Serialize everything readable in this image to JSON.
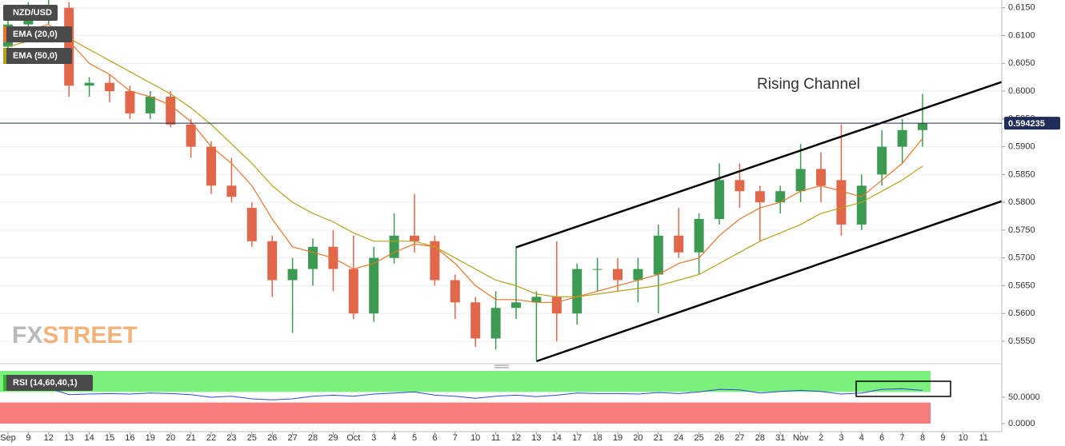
{
  "chart_data": {
    "type": "candlestick",
    "title": "NZD/USD",
    "annotation": "Rising Channel",
    "watermark": {
      "first": "FX",
      "second": "STREET"
    },
    "categories": [
      "Sep",
      "9",
      "12",
      "13",
      "14",
      "15",
      "16",
      "19",
      "20",
      "21",
      "22",
      "23",
      "25",
      "26",
      "27",
      "28",
      "29",
      "Oct",
      "3",
      "4",
      "5",
      "6",
      "7",
      "10",
      "11",
      "12",
      "13",
      "14",
      "17",
      "18",
      "19",
      "20",
      "21",
      "24",
      "25",
      "26",
      "27",
      "28",
      "31",
      "Nov",
      "2",
      "3",
      "4",
      "6",
      "7",
      "8",
      "9",
      "10",
      "11"
    ],
    "open": [
      0.608,
      0.612,
      0.614,
      0.615,
      0.601,
      0.6015,
      0.6,
      0.596,
      0.599,
      0.594,
      0.59,
      0.583,
      0.579,
      0.573,
      0.566,
      0.568,
      0.572,
      0.568,
      0.56,
      0.57,
      0.574,
      0.573,
      0.566,
      0.562,
      0.5555,
      0.561,
      0.562,
      0.563,
      0.56,
      0.568,
      0.568,
      0.566,
      0.567,
      0.574,
      0.571,
      0.577,
      0.584,
      0.582,
      0.58,
      0.582,
      0.586,
      0.584,
      0.576,
      0.585,
      0.59,
      0.593,
      null,
      null,
      null
    ],
    "high": [
      0.613,
      0.616,
      0.6165,
      0.616,
      0.6025,
      0.603,
      0.601,
      0.6,
      0.6,
      0.595,
      0.591,
      0.588,
      0.58,
      0.574,
      0.57,
      0.5735,
      0.575,
      0.574,
      0.572,
      0.578,
      0.5815,
      0.574,
      0.567,
      0.563,
      0.564,
      0.572,
      0.564,
      0.573,
      0.569,
      0.57,
      0.57,
      0.57,
      0.576,
      0.579,
      0.578,
      0.587,
      0.587,
      0.583,
      0.583,
      0.5905,
      0.589,
      0.594,
      0.585,
      0.593,
      0.595,
      0.5995,
      null,
      null,
      null
    ],
    "low": [
      0.606,
      0.61,
      0.612,
      0.599,
      0.599,
      0.598,
      0.595,
      0.595,
      0.5935,
      0.588,
      0.5815,
      0.58,
      0.572,
      0.563,
      0.5565,
      0.565,
      0.564,
      0.559,
      0.5585,
      0.569,
      0.571,
      0.565,
      0.559,
      0.554,
      0.5535,
      0.559,
      0.5515,
      0.555,
      0.558,
      0.564,
      0.564,
      0.562,
      0.56,
      0.57,
      0.567,
      0.576,
      0.579,
      0.573,
      0.578,
      0.58,
      0.58,
      0.574,
      0.575,
      0.583,
      0.587,
      0.59,
      null,
      null,
      null
    ],
    "close": [
      0.612,
      0.614,
      0.615,
      0.601,
      0.6015,
      0.6,
      0.596,
      0.599,
      0.594,
      0.59,
      0.583,
      0.581,
      0.573,
      0.566,
      0.568,
      0.572,
      0.568,
      0.56,
      0.57,
      0.574,
      0.573,
      0.566,
      0.562,
      0.5555,
      0.561,
      0.562,
      0.563,
      0.56,
      0.568,
      0.568,
      0.566,
      0.568,
      0.574,
      0.571,
      0.577,
      0.584,
      0.582,
      0.58,
      0.582,
      0.586,
      0.583,
      0.576,
      0.583,
      0.59,
      0.593,
      0.5942,
      null,
      null,
      null
    ],
    "up_color": "#3d9a53",
    "down_color": "#e0674a",
    "series": [
      {
        "name": "EMA (20,0)",
        "color": "#e8742c",
        "values": [
          0.61,
          0.611,
          0.612,
          0.609,
          0.605,
          0.603,
          0.6,
          0.599,
          0.5975,
          0.5945,
          0.59,
          0.587,
          0.583,
          0.577,
          0.572,
          0.571,
          0.57,
          0.568,
          0.569,
          0.571,
          0.5725,
          0.572,
          0.569,
          0.565,
          0.5625,
          0.5625,
          0.562,
          0.562,
          0.563,
          0.564,
          0.565,
          0.566,
          0.567,
          0.569,
          0.57,
          0.574,
          0.577,
          0.579,
          0.58,
          0.582,
          0.583,
          0.582,
          0.581,
          0.584,
          0.587,
          0.5915,
          null,
          null,
          null
        ]
      },
      {
        "name": "EMA (50,0)",
        "color": "#b5a11a",
        "values": [
          0.608,
          0.609,
          0.61,
          0.6095,
          0.6075,
          0.6055,
          0.6035,
          0.6015,
          0.5995,
          0.597,
          0.594,
          0.5905,
          0.587,
          0.583,
          0.58,
          0.578,
          0.5765,
          0.5745,
          0.573,
          0.573,
          0.573,
          0.572,
          0.57,
          0.568,
          0.566,
          0.565,
          0.5635,
          0.563,
          0.563,
          0.5635,
          0.564,
          0.5645,
          0.565,
          0.566,
          0.567,
          0.569,
          0.571,
          0.573,
          0.5745,
          0.576,
          0.578,
          0.579,
          0.58,
          0.582,
          0.584,
          0.5865,
          null,
          null,
          null
        ]
      }
    ],
    "last_price": 0.594235,
    "ylim": [
      0.5514,
      0.6164
    ],
    "yticks": [
      {
        "value": 0.615,
        "label": "0.6150"
      },
      {
        "value": 0.61,
        "label": "0.6100"
      },
      {
        "value": 0.605,
        "label": "0.6050"
      },
      {
        "value": 0.6,
        "label": "0.6000"
      },
      {
        "value": 0.595,
        "label": "0.5950"
      },
      {
        "value": 0.59,
        "label": "0.5900"
      },
      {
        "value": 0.585,
        "label": "0.5850"
      },
      {
        "value": 0.58,
        "label": "0.5800"
      },
      {
        "value": 0.575,
        "label": "0.5750"
      },
      {
        "value": 0.57,
        "label": "0.5700"
      },
      {
        "value": 0.565,
        "label": "0.5650"
      },
      {
        "value": 0.56,
        "label": "0.5600"
      },
      {
        "value": 0.555,
        "label": "0.5550"
      }
    ],
    "grid": true,
    "trendlines": [
      {
        "x": [
          25,
          45
        ],
        "y": [
          0.5719,
          0.5968
        ]
      },
      {
        "x": [
          26,
          45
        ],
        "y": [
          0.5514,
          0.5753
        ]
      }
    ],
    "rsi": {
      "name": "RSI (14,60,40,1)",
      "color": "#2f45d8",
      "upper": 60,
      "lower": 40,
      "upper_color": "#7cf07c",
      "lower_color": "#f57c7c",
      "values": [
        64,
        66,
        67,
        55,
        56,
        57,
        56,
        58,
        57,
        55,
        50,
        52,
        47,
        45,
        47,
        52,
        54,
        52,
        56,
        58,
        60,
        54,
        52,
        48,
        52,
        54,
        51,
        54,
        58,
        57,
        57,
        56,
        59,
        57,
        60,
        65,
        64,
        58,
        61,
        63,
        61,
        56,
        58,
        65,
        66,
        63,
        null,
        null,
        null
      ],
      "ylim": [
        0,
        100
      ],
      "yticks": [
        {
          "value": 50,
          "label": "50.0000"
        },
        {
          "value": 0,
          "label": "0.0000"
        }
      ]
    }
  }
}
